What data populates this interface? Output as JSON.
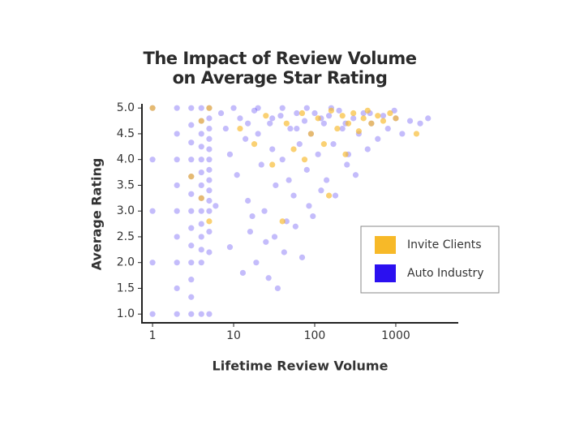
{
  "chart_data": {
    "type": "scatter",
    "title": "The Impact of Review Volume on Average Star Rating",
    "x_label": "Lifetime Review Volume",
    "y_label": "Average Rating",
    "xscale": "log",
    "xlim": [
      0.74,
      5900
    ],
    "xticks": [
      1,
      10,
      100,
      1000
    ],
    "ylim": [
      0.83,
      5.05
    ],
    "yticks": [
      {
        "value": 1,
        "label": "1.0"
      },
      {
        "value": 1.5,
        "label": "1.5"
      },
      {
        "value": 2,
        "label": "2.0"
      },
      {
        "value": 2.5,
        "label": "2.5"
      },
      {
        "value": 3,
        "label": "3.0"
      },
      {
        "value": 3.5,
        "label": "3.5"
      },
      {
        "value": 4,
        "label": "4.0"
      },
      {
        "value": 4.5,
        "label": "4.5"
      },
      {
        "value": 5,
        "label": "5.0"
      }
    ],
    "legend": "right",
    "series": [
      {
        "name": "Auto Industry",
        "color": "#2b10f0",
        "x": [
          1,
          1,
          1,
          1,
          1,
          2,
          2,
          2,
          2,
          2,
          2,
          2,
          2,
          2,
          3,
          3,
          3,
          3,
          3,
          3,
          3,
          3,
          3,
          3,
          3,
          3,
          3,
          4,
          4,
          4,
          4,
          4,
          4,
          4,
          4,
          4,
          4,
          4,
          4,
          4,
          4,
          5,
          5,
          5,
          5,
          5,
          5,
          5,
          5,
          5,
          5,
          5,
          5,
          5,
          5,
          7,
          8,
          9,
          11,
          12,
          14,
          15,
          17,
          18,
          20,
          22,
          25,
          28,
          30,
          33,
          35,
          38,
          40,
          45,
          50,
          55,
          60,
          65,
          70,
          75,
          80,
          90,
          100,
          110,
          120,
          130,
          150,
          170,
          200,
          220,
          250,
          300,
          350,
          400,
          500,
          600,
          700,
          800,
          1000,
          1200,
          1500,
          2000,
          2500,
          6,
          9,
          13,
          16,
          19,
          24,
          27,
          32,
          42,
          48,
          58,
          85,
          95,
          140,
          180,
          260,
          320,
          450,
          10,
          20,
          40,
          80,
          160,
          15,
          30,
          60,
          120,
          240,
          480,
          960
        ],
        "y": [
          5,
          4,
          3,
          2,
          1,
          5,
          4.5,
          4,
          3.5,
          3,
          2.5,
          2,
          1.5,
          1,
          5,
          4.67,
          4.33,
          4,
          3.67,
          3.33,
          3,
          2.67,
          2.33,
          2,
          1.67,
          1.33,
          1,
          5,
          4.75,
          4.5,
          4.25,
          4,
          3.75,
          3.5,
          3.25,
          3,
          2.75,
          2.5,
          2.25,
          2,
          1,
          5,
          4.8,
          4.6,
          4.4,
          4.2,
          4,
          3.8,
          3.6,
          3.4,
          3.2,
          3,
          2.6,
          2.2,
          1,
          4.9,
          4.6,
          4.1,
          3.7,
          4.8,
          4.4,
          3.2,
          2.9,
          4.95,
          4.5,
          3.9,
          2.4,
          4.7,
          4.2,
          3.5,
          1.5,
          4.85,
          4,
          2.8,
          4.6,
          3.3,
          4.9,
          4.3,
          2.1,
          4.75,
          3.8,
          4.5,
          4.9,
          4.1,
          3.4,
          4.7,
          4.85,
          4.3,
          4.95,
          4.6,
          3.9,
          4.8,
          4.5,
          4.9,
          4.7,
          4.4,
          4.85,
          4.6,
          4.8,
          4.5,
          4.75,
          4.7,
          4.8,
          3.1,
          2.3,
          1.8,
          2.6,
          2,
          3,
          1.7,
          2.5,
          2.2,
          3.6,
          2.7,
          3.1,
          2.9,
          3.6,
          3.3,
          4.1,
          3.7,
          4.2,
          5,
          5,
          5,
          5,
          5,
          4.7,
          4.8,
          4.6,
          4.8,
          4.7,
          4.9,
          4.95
        ]
      },
      {
        "name": "Invite Clients",
        "color": "#f7b928",
        "x": [
          1,
          5,
          4,
          3,
          4,
          5,
          12,
          18,
          25,
          30,
          45,
          55,
          70,
          90,
          110,
          130,
          160,
          190,
          220,
          260,
          300,
          350,
          400,
          450,
          500,
          600,
          700,
          850,
          1000,
          1800,
          150,
          40,
          240,
          75
        ],
        "y": [
          5,
          5,
          4.75,
          3.67,
          3.25,
          2.8,
          4.6,
          4.3,
          4.85,
          3.9,
          4.7,
          4.2,
          4.9,
          4.5,
          4.8,
          4.3,
          4.95,
          4.6,
          4.85,
          4.7,
          4.9,
          4.55,
          4.8,
          4.95,
          4.7,
          4.85,
          4.75,
          4.9,
          4.8,
          4.5,
          3.3,
          2.8,
          4.1,
          4
        ]
      }
    ]
  }
}
